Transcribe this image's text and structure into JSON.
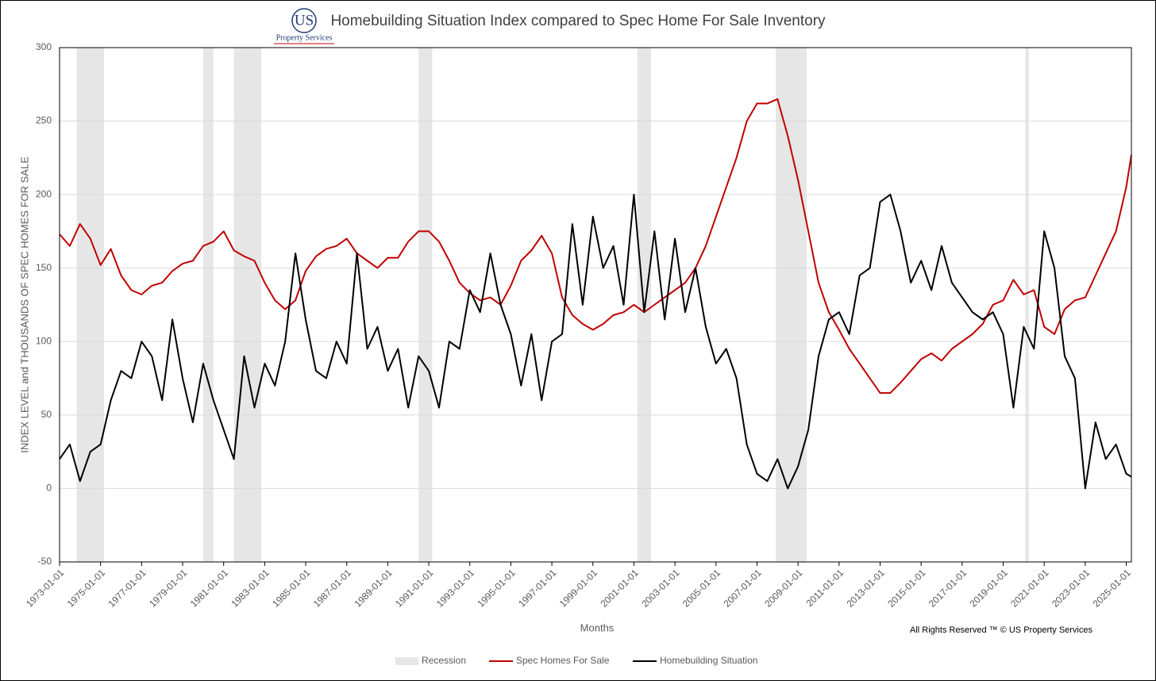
{
  "chart_data": {
    "type": "line",
    "title": "Homebuilding Situation Index compared to Spec Home For Sale Inventory",
    "logo": {
      "mark": "US",
      "text": "Property Services"
    },
    "x_label": "Months",
    "y_label": "INDEX LEVEL and THOUSANDS OF SPEC HOMES FOR SALE",
    "footnote": "All Rights Reserved ™ © US Property Services",
    "xlim": [
      "1973-01-01",
      "2025-04-01"
    ],
    "ylim": [
      -50,
      300
    ],
    "yticks": [
      -50,
      0,
      50,
      100,
      150,
      200,
      250,
      300
    ],
    "xticks": [
      "1973-01-01",
      "1975-01-01",
      "1977-01-01",
      "1979-01-01",
      "1981-01-01",
      "1983-01-01",
      "1985-01-01",
      "1987-01-01",
      "1989-01-01",
      "1991-01-01",
      "1993-01-01",
      "1995-01-01",
      "1997-01-01",
      "1999-01-01",
      "2001-01-01",
      "2003-01-01",
      "2005-01-01",
      "2007-01-01",
      "2009-01-01",
      "2011-01-01",
      "2013-01-01",
      "2015-01-01",
      "2017-01-01",
      "2019-01-01",
      "2021-01-01",
      "2023-01-01",
      "2025-01-01"
    ],
    "grid": true,
    "legend_position": "bottom",
    "recession": {
      "name": "Recession",
      "color": "#e6e6e6",
      "periods": [
        [
          "1973-11-01",
          "1975-03-01"
        ],
        [
          "1980-01-01",
          "1980-07-01"
        ],
        [
          "1981-07-01",
          "1982-11-01"
        ],
        [
          "1990-07-01",
          "1991-03-01"
        ],
        [
          "2001-03-01",
          "2001-11-01"
        ],
        [
          "2007-12-01",
          "2009-06-01"
        ],
        [
          "2020-02-01",
          "2020-04-01"
        ]
      ]
    },
    "x": [
      "1973-01-01",
      "1973-07-01",
      "1974-01-01",
      "1974-07-01",
      "1975-01-01",
      "1975-07-01",
      "1976-01-01",
      "1976-07-01",
      "1977-01-01",
      "1977-07-01",
      "1978-01-01",
      "1978-07-01",
      "1979-01-01",
      "1979-07-01",
      "1980-01-01",
      "1980-07-01",
      "1981-01-01",
      "1981-07-01",
      "1982-01-01",
      "1982-07-01",
      "1983-01-01",
      "1983-07-01",
      "1984-01-01",
      "1984-07-01",
      "1985-01-01",
      "1985-07-01",
      "1986-01-01",
      "1986-07-01",
      "1987-01-01",
      "1987-07-01",
      "1988-01-01",
      "1988-07-01",
      "1989-01-01",
      "1989-07-01",
      "1990-01-01",
      "1990-07-01",
      "1991-01-01",
      "1991-07-01",
      "1992-01-01",
      "1992-07-01",
      "1993-01-01",
      "1993-07-01",
      "1994-01-01",
      "1994-07-01",
      "1995-01-01",
      "1995-07-01",
      "1996-01-01",
      "1996-07-01",
      "1997-01-01",
      "1997-07-01",
      "1998-01-01",
      "1998-07-01",
      "1999-01-01",
      "1999-07-01",
      "2000-01-01",
      "2000-07-01",
      "2001-01-01",
      "2001-07-01",
      "2002-01-01",
      "2002-07-01",
      "2003-01-01",
      "2003-07-01",
      "2004-01-01",
      "2004-07-01",
      "2005-01-01",
      "2005-07-01",
      "2006-01-01",
      "2006-07-01",
      "2007-01-01",
      "2007-07-01",
      "2008-01-01",
      "2008-07-01",
      "2009-01-01",
      "2009-07-01",
      "2010-01-01",
      "2010-07-01",
      "2011-01-01",
      "2011-07-01",
      "2012-01-01",
      "2012-07-01",
      "2013-01-01",
      "2013-07-01",
      "2014-01-01",
      "2014-07-01",
      "2015-01-01",
      "2015-07-01",
      "2016-01-01",
      "2016-07-01",
      "2017-01-01",
      "2017-07-01",
      "2018-01-01",
      "2018-07-01",
      "2019-01-01",
      "2019-07-01",
      "2020-01-01",
      "2020-07-01",
      "2021-01-01",
      "2021-07-01",
      "2022-01-01",
      "2022-07-01",
      "2023-01-01",
      "2023-07-01",
      "2024-01-01",
      "2024-07-01",
      "2025-01-01",
      "2025-04-01"
    ],
    "series": [
      {
        "name": "Spec Homes For Sale",
        "color": "#c00000",
        "values": [
          173,
          165,
          180,
          170,
          152,
          163,
          145,
          135,
          132,
          138,
          140,
          148,
          153,
          155,
          165,
          168,
          175,
          162,
          158,
          155,
          140,
          128,
          122,
          128,
          148,
          158,
          163,
          165,
          170,
          160,
          155,
          150,
          157,
          157,
          168,
          175,
          175,
          168,
          155,
          140,
          133,
          128,
          130,
          125,
          138,
          155,
          162,
          172,
          160,
          130,
          118,
          112,
          108,
          112,
          118,
          120,
          125,
          120,
          125,
          130,
          135,
          140,
          150,
          165,
          185,
          205,
          225,
          250,
          262,
          262,
          265,
          240,
          210,
          175,
          140,
          120,
          108,
          95,
          85,
          75,
          65,
          65,
          72,
          80,
          88,
          92,
          87,
          95,
          100,
          105,
          112,
          125,
          128,
          142,
          132,
          135,
          110,
          105,
          122,
          128,
          130,
          145,
          160,
          175,
          205,
          227
        ]
      },
      {
        "name": "Homebuilding Situation",
        "color": "#000000",
        "values": [
          20,
          30,
          5,
          25,
          30,
          60,
          80,
          75,
          100,
          90,
          60,
          115,
          75,
          45,
          85,
          60,
          40,
          20,
          90,
          55,
          85,
          70,
          100,
          160,
          115,
          80,
          75,
          100,
          85,
          160,
          95,
          110,
          80,
          95,
          55,
          90,
          80,
          55,
          100,
          95,
          135,
          120,
          160,
          125,
          105,
          70,
          105,
          60,
          100,
          105,
          180,
          125,
          185,
          150,
          165,
          125,
          200,
          120,
          175,
          115,
          170,
          120,
          150,
          110,
          85,
          95,
          75,
          30,
          10,
          5,
          20,
          0,
          15,
          40,
          90,
          115,
          120,
          105,
          145,
          150,
          195,
          200,
          175,
          140,
          155,
          135,
          165,
          140,
          130,
          120,
          115,
          120,
          105,
          55,
          110,
          95,
          175,
          150,
          90,
          75,
          0,
          45,
          20,
          30,
          10,
          8
        ]
      }
    ]
  }
}
